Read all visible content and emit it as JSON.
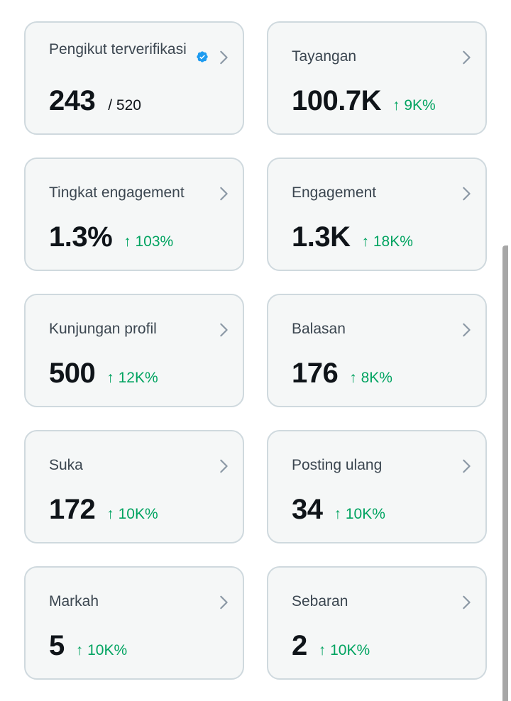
{
  "cards": [
    {
      "label": "Pengikut terverifikasi",
      "value": "243",
      "total": "/ 520",
      "change": "",
      "verified": true
    },
    {
      "label": "Tayangan",
      "value": "100.7K",
      "change": "↑ 9K%"
    },
    {
      "label": "Tingkat engagement",
      "value": "1.3%",
      "change": "↑ 103%"
    },
    {
      "label": "Engagement",
      "value": "1.3K",
      "change": "↑ 18K%"
    },
    {
      "label": "Kunjungan profil",
      "value": "500",
      "change": "↑ 12K%"
    },
    {
      "label": "Balasan",
      "value": "176",
      "change": "↑ 8K%"
    },
    {
      "label": "Suka",
      "value": "172",
      "change": "↑ 10K%"
    },
    {
      "label": "Posting ulang",
      "value": "34",
      "change": "↑ 10K%"
    },
    {
      "label": "Markah",
      "value": "5",
      "change": "↑ 10K%"
    },
    {
      "label": "Sebaran",
      "value": "2",
      "change": "↑ 10K%"
    }
  ],
  "icons": {
    "chevron": "chevron-right-icon",
    "verified": "verified-badge-icon"
  },
  "colors": {
    "card_background": "#f5f7f7",
    "card_border": "#cfd9de",
    "value_text": "#0f1419",
    "label_text": "#3b4650",
    "positive_change": "#00a360",
    "verified_blue": "#1d9bf0",
    "chevron": "#8b98a5"
  }
}
